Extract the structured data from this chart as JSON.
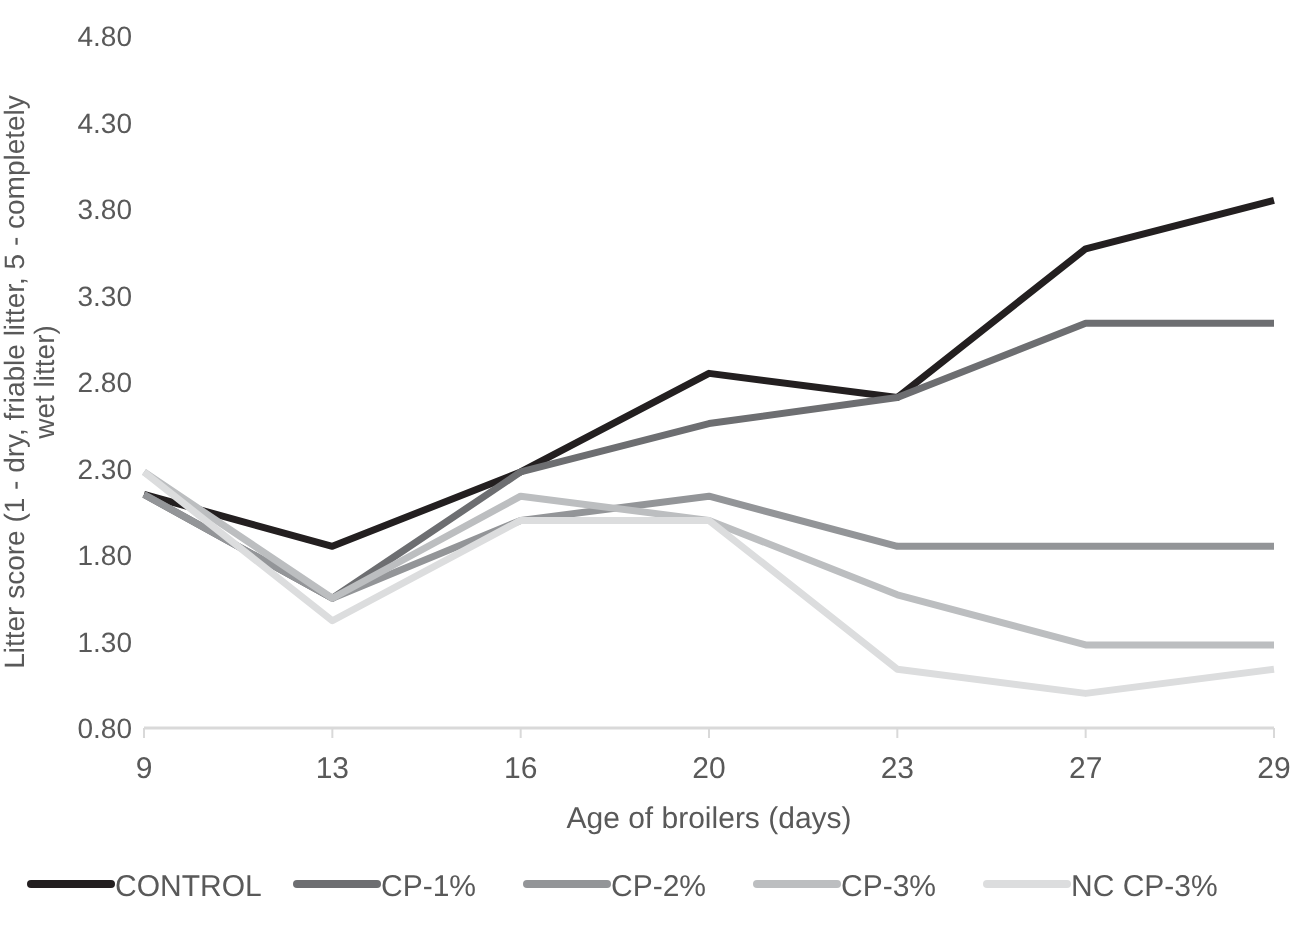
{
  "chart_data": {
    "type": "line",
    "xlabel": "Age of broilers (days)",
    "ylabel": "Litter score (1 - dry, friable litter, 5 - completely wet litter)",
    "categories": [
      "9",
      "13",
      "16",
      "20",
      "23",
      "27",
      "29"
    ],
    "ylim": [
      0.8,
      4.8
    ],
    "yticks": [
      {
        "value": 0.8,
        "label": "0.80"
      },
      {
        "value": 1.3,
        "label": "1.30"
      },
      {
        "value": 1.8,
        "label": "1.80"
      },
      {
        "value": 2.3,
        "label": "2.30"
      },
      {
        "value": 2.8,
        "label": "2.80"
      },
      {
        "value": 3.3,
        "label": "3.30"
      },
      {
        "value": 3.8,
        "label": "3.80"
      },
      {
        "value": 4.3,
        "label": "4.30"
      },
      {
        "value": 4.8,
        "label": "4.80"
      }
    ],
    "grid": false,
    "legend": "bottom",
    "marker": "none",
    "line_style": "solid",
    "series": [
      {
        "name": "CONTROL",
        "color": "#231f20",
        "values": [
          2.15,
          1.85,
          2.28,
          2.85,
          2.71,
          3.57,
          3.85
        ]
      },
      {
        "name": "CP-1%",
        "color": "#6d6e71",
        "values": [
          2.15,
          1.55,
          2.28,
          2.56,
          2.71,
          3.14,
          3.14
        ]
      },
      {
        "name": "CP-2%",
        "color": "#939598",
        "values": [
          2.15,
          1.55,
          2.0,
          2.14,
          1.85,
          1.85,
          1.85
        ]
      },
      {
        "name": "CP-3%",
        "color": "#bcbec0",
        "values": [
          2.28,
          1.55,
          2.14,
          2.0,
          1.57,
          1.28,
          1.28
        ]
      },
      {
        "name": "NC CP-3%",
        "color": "#dcddde",
        "values": [
          2.28,
          1.42,
          2.0,
          2.0,
          1.14,
          1.0,
          1.14
        ]
      }
    ]
  }
}
